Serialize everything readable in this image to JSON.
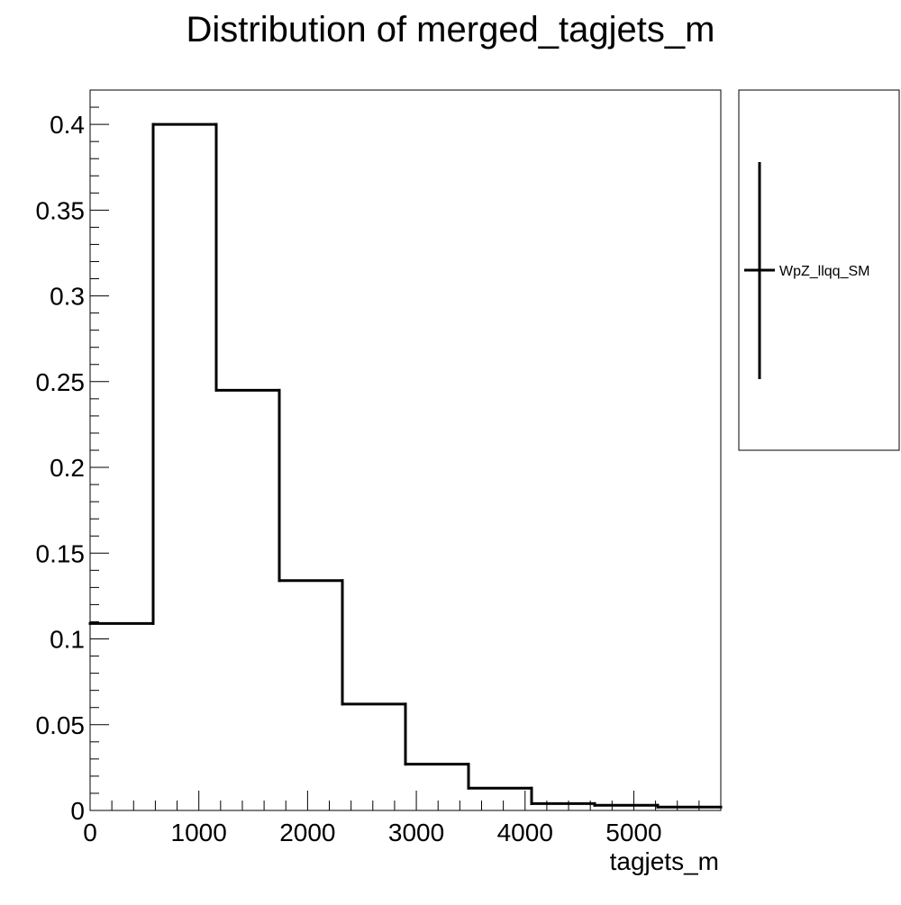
{
  "chart_data": {
    "type": "bar",
    "title": "Distribution of merged_tagjets_m",
    "xlabel": "tagjets_m",
    "ylabel": "",
    "xlim": [
      0,
      5800
    ],
    "ylim": [
      0,
      0.42
    ],
    "grid": false,
    "legend_position": "right",
    "bin_edges": [
      0,
      580,
      1160,
      1740,
      2320,
      2900,
      3480,
      4060,
      4640,
      5220,
      5800
    ],
    "x_ticks": [
      0,
      1000,
      2000,
      3000,
      4000,
      5000
    ],
    "x_tick_labels": [
      "0",
      "1000",
      "2000",
      "3000",
      "4000",
      "5000"
    ],
    "y_ticks": [
      0,
      0.05,
      0.1,
      0.15,
      0.2,
      0.25,
      0.3,
      0.35,
      0.4
    ],
    "y_tick_labels": [
      "0",
      "0.05",
      "0.1",
      "0.15",
      "0.2",
      "0.25",
      "0.3",
      "0.35",
      "0.4"
    ],
    "series": [
      {
        "name": "WpZ_llqq_SM",
        "color": "#000000",
        "values": [
          0.109,
          0.4,
          0.245,
          0.134,
          0.062,
          0.027,
          0.013,
          0.004,
          0.003,
          0.002
        ]
      }
    ]
  }
}
